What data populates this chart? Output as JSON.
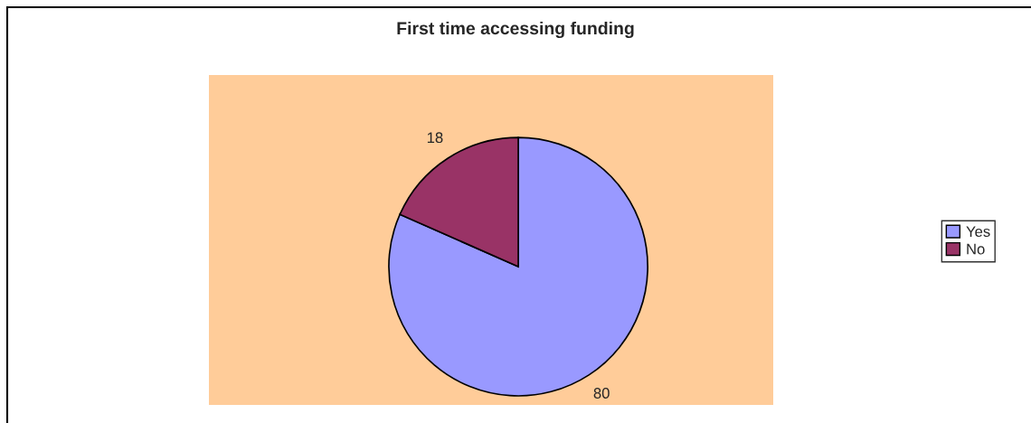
{
  "chart_data": {
    "type": "pie",
    "title": "First time accessing funding",
    "categories": [
      "Yes",
      "No"
    ],
    "values": [
      80,
      18
    ],
    "colors": [
      "#9999ff",
      "#993366"
    ],
    "data_labels": true,
    "legend": "right"
  }
}
